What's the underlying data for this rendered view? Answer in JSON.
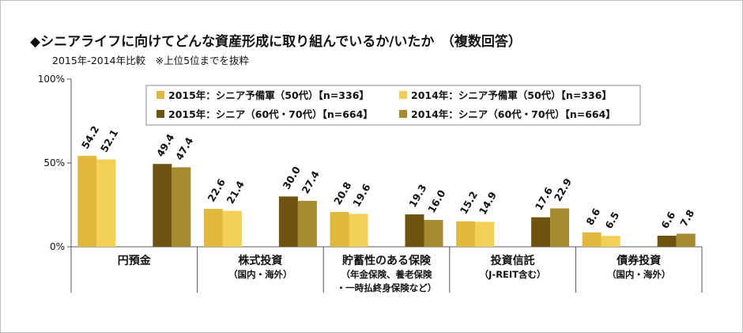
{
  "header": {
    "title": "◆シニアライフに向けてどんな資産形成に取り組んでいるか/いたか　（複数回答）",
    "subtitle": "2015年-2014年比較　※上位5位までを抜粋"
  },
  "chart_data": {
    "type": "bar",
    "categories": [
      [
        "円預金"
      ],
      [
        "株式投資",
        "（国内・海外）"
      ],
      [
        "貯蓄性のある保険",
        "（年金保険、養老保険",
        "・一時払終身保険など）"
      ],
      [
        "投資信託",
        "（J-REIT含む）"
      ],
      [
        "債券投資",
        "（国内・海外）"
      ]
    ],
    "series": [
      {
        "name": "2015年：シニア予備軍（50代）【n=336】",
        "color": "#e0b93c",
        "values": [
          54.2,
          22.6,
          20.8,
          15.2,
          8.6
        ]
      },
      {
        "name": "2014年：シニア予備軍（50代）【n=336】",
        "color": "#f2cf55",
        "values": [
          52.1,
          21.4,
          19.6,
          14.9,
          6.5
        ]
      },
      {
        "name": "2015年：シニア（60代・70代）【n=664】",
        "color": "#6e5410",
        "values": [
          49.4,
          30.0,
          19.3,
          17.6,
          6.6
        ]
      },
      {
        "name": "2014年：シニア（60代・70代）【n=664】",
        "color": "#a68a2f",
        "values": [
          47.4,
          27.4,
          16.0,
          22.9,
          7.8
        ]
      }
    ],
    "yticks": [
      "0%",
      "50%",
      "100%"
    ],
    "ylim": [
      0,
      100
    ],
    "grid": false,
    "legend_position": "top-center"
  }
}
